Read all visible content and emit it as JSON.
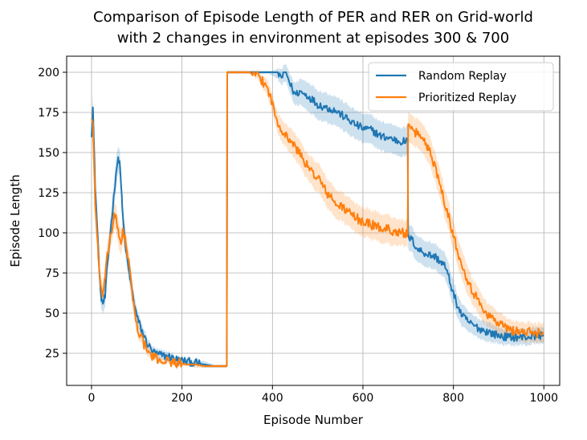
{
  "chart_data": {
    "type": "line",
    "title": "Comparison of Episode Length of PER and RER on Grid-world",
    "subtitle": "with 2 changes in environment at episodes 300 & 700",
    "xlabel": "Episode Number",
    "ylabel": "Episode Length",
    "xlim": [
      -55,
      1035
    ],
    "ylim": [
      5,
      210
    ],
    "xticks": [
      0,
      200,
      400,
      600,
      800,
      1000
    ],
    "yticks": [
      25,
      50,
      75,
      100,
      125,
      150,
      175,
      200
    ],
    "grid": true,
    "legend": "top-right",
    "series": [
      {
        "name": "Random Replay",
        "color": "#1f77b4",
        "x": [
          0,
          3,
          8,
          15,
          20,
          25,
          30,
          35,
          40,
          45,
          50,
          55,
          60,
          63,
          65,
          68,
          72,
          78,
          85,
          92,
          100,
          110,
          120,
          130,
          140,
          150,
          170,
          190,
          210,
          230,
          250,
          270,
          299,
          300,
          310,
          330,
          350,
          370,
          390,
          400,
          410,
          420,
          430,
          440,
          450,
          460,
          480,
          500,
          520,
          540,
          560,
          580,
          600,
          620,
          640,
          660,
          680,
          699,
          700,
          710,
          720,
          740,
          760,
          780,
          790,
          800,
          810,
          820,
          840,
          860,
          880,
          900,
          920,
          940,
          960,
          980,
          1000
        ],
        "y": [
          162,
          178,
          130,
          90,
          62,
          56,
          60,
          80,
          95,
          110,
          125,
          140,
          146,
          142,
          132,
          115,
          100,
          85,
          72,
          60,
          48,
          40,
          33,
          28,
          25,
          24,
          23,
          21,
          20,
          19,
          18,
          17,
          17,
          200,
          200,
          200,
          200,
          200,
          200,
          200,
          200,
          197,
          200,
          192,
          186,
          188,
          185,
          180,
          178,
          176,
          172,
          168,
          165,
          164,
          160,
          159,
          157,
          157,
          98,
          95,
          90,
          87,
          85,
          80,
          72,
          62,
          54,
          48,
          43,
          40,
          38,
          36,
          35,
          35,
          35,
          36,
          36
        ],
        "lower": [
          155,
          168,
          122,
          82,
          55,
          50,
          53,
          72,
          87,
          102,
          117,
          131,
          138,
          134,
          124,
          107,
          93,
          78,
          66,
          54,
          43,
          36,
          29,
          25,
          22,
          21,
          20,
          19,
          18,
          17,
          16,
          16,
          16,
          199,
          199,
          199,
          199,
          199,
          199,
          198,
          196,
          192,
          194,
          186,
          179,
          180,
          176,
          171,
          169,
          167,
          163,
          159,
          156,
          155,
          151,
          150,
          148,
          148,
          90,
          87,
          82,
          79,
          77,
          72,
          64,
          54,
          47,
          41,
          37,
          34,
          32,
          31,
          30,
          30,
          30,
          31,
          31
        ],
        "upper": [
          169,
          186,
          138,
          98,
          69,
          62,
          67,
          88,
          103,
          118,
          133,
          149,
          154,
          150,
          140,
          123,
          107,
          92,
          78,
          66,
          53,
          44,
          37,
          31,
          28,
          27,
          26,
          23,
          22,
          21,
          20,
          18,
          18,
          201,
          201,
          201,
          201,
          201,
          201,
          201,
          202,
          202,
          205,
          198,
          193,
          196,
          194,
          189,
          187,
          185,
          181,
          177,
          174,
          173,
          169,
          168,
          166,
          166,
          106,
          103,
          98,
          95,
          93,
          88,
          80,
          70,
          61,
          55,
          49,
          46,
          44,
          41,
          40,
          40,
          40,
          41,
          41
        ]
      },
      {
        "name": "Prioritized Replay",
        "color": "#ff7f0e",
        "x": [
          0,
          3,
          8,
          15,
          20,
          25,
          30,
          35,
          40,
          45,
          50,
          55,
          60,
          65,
          70,
          78,
          85,
          92,
          100,
          110,
          120,
          130,
          140,
          150,
          170,
          190,
          210,
          230,
          250,
          270,
          299,
          300,
          310,
          330,
          350,
          370,
          390,
          400,
          410,
          420,
          430,
          440,
          450,
          460,
          470,
          480,
          490,
          500,
          520,
          540,
          560,
          580,
          600,
          620,
          640,
          660,
          680,
          699,
          700,
          710,
          720,
          730,
          740,
          750,
          760,
          770,
          780,
          790,
          800,
          810,
          820,
          830,
          840,
          860,
          880,
          900,
          920,
          940,
          960,
          980,
          1000
        ],
        "y": [
          172,
          168,
          120,
          85,
          65,
          62,
          72,
          85,
          95,
          102,
          110,
          108,
          98,
          95,
          102,
          90,
          75,
          58,
          42,
          35,
          28,
          24,
          22,
          21,
          20,
          19,
          18,
          18,
          17,
          17,
          17,
          200,
          200,
          200,
          200,
          197,
          190,
          180,
          170,
          165,
          160,
          158,
          153,
          150,
          145,
          140,
          137,
          135,
          125,
          118,
          115,
          110,
          107,
          105,
          103,
          102,
          100,
          100,
          165,
          163,
          162,
          160,
          155,
          150,
          140,
          132,
          120,
          110,
          98,
          88,
          80,
          72,
          65,
          55,
          48,
          44,
          40,
          39,
          38,
          38,
          38
        ],
        "lower": [
          166,
          160,
          112,
          78,
          58,
          55,
          65,
          77,
          87,
          95,
          102,
          100,
          90,
          87,
          94,
          82,
          68,
          52,
          37,
          31,
          25,
          21,
          20,
          19,
          18,
          17,
          17,
          16,
          16,
          16,
          16,
          199,
          199,
          199,
          199,
          194,
          185,
          174,
          164,
          158,
          153,
          150,
          145,
          142,
          137,
          132,
          128,
          126,
          116,
          109,
          106,
          101,
          98,
          96,
          94,
          93,
          92,
          92,
          156,
          154,
          153,
          151,
          146,
          141,
          131,
          123,
          111,
          101,
          89,
          79,
          71,
          63,
          57,
          47,
          41,
          37,
          34,
          33,
          32,
          32,
          32
        ],
        "upper": [
          178,
          176,
          128,
          92,
          72,
          69,
          79,
          93,
          103,
          109,
          118,
          116,
          106,
          103,
          110,
          98,
          82,
          64,
          47,
          39,
          31,
          27,
          24,
          23,
          22,
          21,
          19,
          20,
          18,
          18,
          18,
          201,
          201,
          201,
          201,
          200,
          195,
          186,
          176,
          172,
          167,
          166,
          161,
          158,
          153,
          148,
          146,
          144,
          134,
          127,
          124,
          119,
          116,
          114,
          112,
          111,
          108,
          108,
          174,
          172,
          171,
          169,
          164,
          159,
          149,
          141,
          129,
          119,
          107,
          97,
          89,
          81,
          73,
          63,
          55,
          51,
          46,
          45,
          44,
          44,
          44
        ]
      }
    ]
  }
}
